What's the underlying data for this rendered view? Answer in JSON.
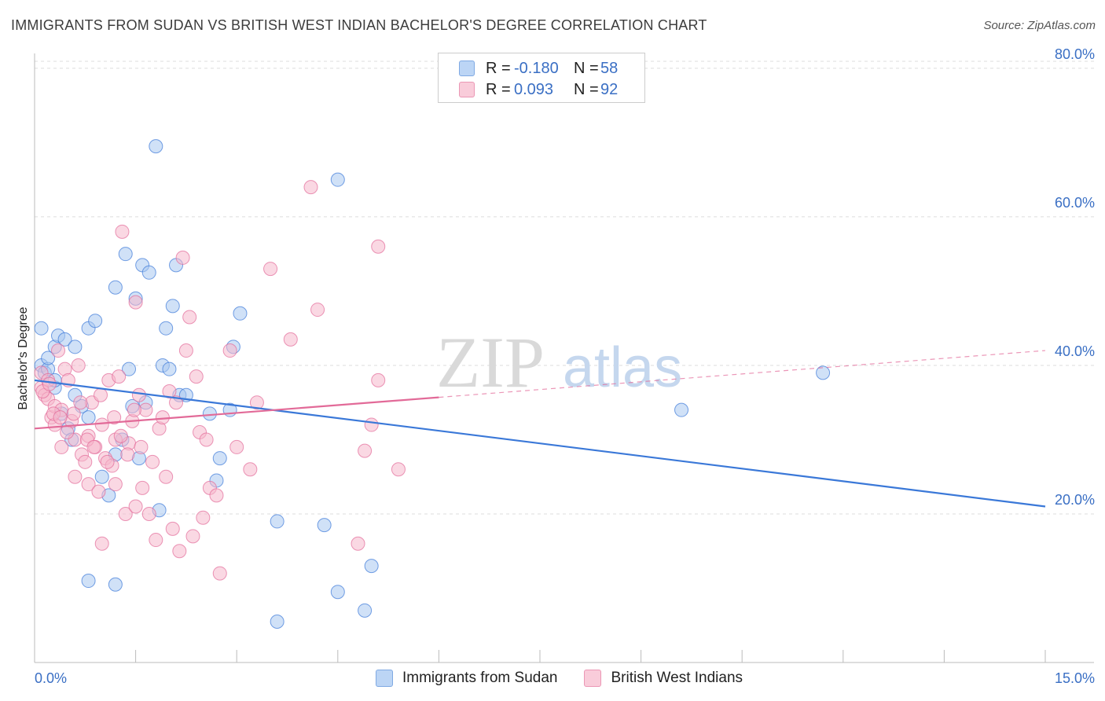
{
  "header": {
    "title": "IMMIGRANTS FROM SUDAN VS BRITISH WEST INDIAN BACHELOR'S DEGREE CORRELATION CHART",
    "source": "Source: ZipAtlas.com"
  },
  "watermark": {
    "zip": "ZIP",
    "atlas": "atlas"
  },
  "legend": {
    "rows": [
      {
        "r_label": "R =",
        "r_value": "-0.180",
        "n_label": "N =",
        "n_value": "58",
        "color": "#a9c8f0"
      },
      {
        "r_label": "R =",
        "r_value": "0.093",
        "n_label": "N =",
        "n_value": "92",
        "color": "#f6b8cc"
      }
    ]
  },
  "bottom_legend": {
    "items": [
      {
        "label": "Immigrants from Sudan",
        "color": "#a9c8f0"
      },
      {
        "label": "British West Indians",
        "color": "#f6b8cc"
      }
    ]
  },
  "chart_data": {
    "type": "scatter",
    "ylabel": "Bachelor's Degree",
    "xlim": [
      0,
      15
    ],
    "ylim": [
      0,
      82
    ],
    "x_tick_labels": [
      "0.0%",
      "15.0%"
    ],
    "y_ticks": [
      20,
      40,
      60,
      80
    ],
    "y_tick_labels": [
      "20.0%",
      "40.0%",
      "60.0%",
      "80.0%"
    ],
    "grid": true,
    "colors": {
      "sudan": "#3a78d8",
      "sudan_fill": "#a9c8f0",
      "bwi": "#e26a98",
      "bwi_fill": "#f6b8cc"
    },
    "series": [
      {
        "name": "Immigrants from Sudan",
        "trend": {
          "x": [
            0,
            15
          ],
          "y": [
            38.0,
            21.0
          ],
          "solid_to": 15
        },
        "points": [
          [
            0.1,
            40.0
          ],
          [
            0.1,
            45.0
          ],
          [
            0.15,
            39.0
          ],
          [
            0.2,
            39.5
          ],
          [
            0.2,
            41.0
          ],
          [
            0.3,
            37.0
          ],
          [
            0.3,
            42.5
          ],
          [
            0.35,
            44.0
          ],
          [
            0.4,
            33.5
          ],
          [
            0.45,
            43.5
          ],
          [
            0.5,
            31.5
          ],
          [
            0.55,
            30.0
          ],
          [
            0.6,
            42.5
          ],
          [
            0.7,
            34.5
          ],
          [
            0.8,
            45.0
          ],
          [
            0.8,
            33.0
          ],
          [
            0.9,
            46.0
          ],
          [
            1.0,
            25.0
          ],
          [
            1.1,
            22.5
          ],
          [
            1.2,
            50.5
          ],
          [
            1.2,
            28.0
          ],
          [
            1.3,
            30.0
          ],
          [
            1.35,
            55.0
          ],
          [
            1.4,
            39.5
          ],
          [
            1.45,
            34.5
          ],
          [
            1.5,
            49.0
          ],
          [
            1.55,
            27.5
          ],
          [
            1.6,
            53.5
          ],
          [
            1.65,
            35.0
          ],
          [
            1.7,
            52.5
          ],
          [
            1.8,
            69.5
          ],
          [
            1.85,
            20.5
          ],
          [
            1.9,
            40.0
          ],
          [
            1.95,
            45.0
          ],
          [
            2.0,
            39.5
          ],
          [
            2.05,
            48.0
          ],
          [
            2.1,
            53.5
          ],
          [
            2.15,
            36.0
          ],
          [
            2.25,
            36.0
          ],
          [
            2.6,
            33.5
          ],
          [
            2.7,
            24.5
          ],
          [
            2.75,
            27.5
          ],
          [
            2.9,
            34.0
          ],
          [
            2.95,
            42.5
          ],
          [
            3.05,
            47.0
          ],
          [
            3.6,
            19.0
          ],
          [
            3.6,
            5.5
          ],
          [
            4.3,
            18.5
          ],
          [
            4.5,
            9.5
          ],
          [
            4.5,
            65.0
          ],
          [
            4.9,
            7.0
          ],
          [
            5.0,
            13.0
          ],
          [
            9.6,
            34.0
          ],
          [
            11.7,
            39.0
          ],
          [
            0.8,
            11.0
          ],
          [
            1.2,
            10.5
          ],
          [
            0.3,
            38.0
          ],
          [
            0.6,
            36.0
          ]
        ]
      },
      {
        "name": "British West Indians",
        "trend": {
          "x": [
            0,
            15
          ],
          "y": [
            31.5,
            42.0
          ],
          "solid_to": 6.0
        },
        "points": [
          [
            0.1,
            37.0
          ],
          [
            0.1,
            39.0
          ],
          [
            0.15,
            36.0
          ],
          [
            0.2,
            38.0
          ],
          [
            0.2,
            35.5
          ],
          [
            0.25,
            33.0
          ],
          [
            0.3,
            34.5
          ],
          [
            0.3,
            32.0
          ],
          [
            0.35,
            42.0
          ],
          [
            0.4,
            29.0
          ],
          [
            0.4,
            34.0
          ],
          [
            0.45,
            39.5
          ],
          [
            0.5,
            38.0
          ],
          [
            0.55,
            32.5
          ],
          [
            0.6,
            30.0
          ],
          [
            0.6,
            25.0
          ],
          [
            0.65,
            40.0
          ],
          [
            0.7,
            28.0
          ],
          [
            0.75,
            27.0
          ],
          [
            0.8,
            24.0
          ],
          [
            0.8,
            30.5
          ],
          [
            0.85,
            35.0
          ],
          [
            0.9,
            29.0
          ],
          [
            0.95,
            23.0
          ],
          [
            1.0,
            32.0
          ],
          [
            1.0,
            16.0
          ],
          [
            1.05,
            27.5
          ],
          [
            1.1,
            38.0
          ],
          [
            1.15,
            26.5
          ],
          [
            1.2,
            30.0
          ],
          [
            1.2,
            24.0
          ],
          [
            1.25,
            38.5
          ],
          [
            1.3,
            58.0
          ],
          [
            1.35,
            20.0
          ],
          [
            1.4,
            29.5
          ],
          [
            1.45,
            32.5
          ],
          [
            1.5,
            21.0
          ],
          [
            1.5,
            48.5
          ],
          [
            1.55,
            36.0
          ],
          [
            1.6,
            23.5
          ],
          [
            1.65,
            34.0
          ],
          [
            1.7,
            20.0
          ],
          [
            1.75,
            27.0
          ],
          [
            1.8,
            16.5
          ],
          [
            1.85,
            31.5
          ],
          [
            1.9,
            33.0
          ],
          [
            1.95,
            25.0
          ],
          [
            2.0,
            36.5
          ],
          [
            2.05,
            18.0
          ],
          [
            2.1,
            35.0
          ],
          [
            2.15,
            15.0
          ],
          [
            2.2,
            54.5
          ],
          [
            2.25,
            42.0
          ],
          [
            2.3,
            46.5
          ],
          [
            2.35,
            17.0
          ],
          [
            2.4,
            38.5
          ],
          [
            2.45,
            31.0
          ],
          [
            2.5,
            19.5
          ],
          [
            2.55,
            30.0
          ],
          [
            2.6,
            23.5
          ],
          [
            2.7,
            22.5
          ],
          [
            2.75,
            12.0
          ],
          [
            2.9,
            42.0
          ],
          [
            3.0,
            29.0
          ],
          [
            3.2,
            26.0
          ],
          [
            3.3,
            35.0
          ],
          [
            3.5,
            53.0
          ],
          [
            3.8,
            43.5
          ],
          [
            4.1,
            64.0
          ],
          [
            4.2,
            47.5
          ],
          [
            4.8,
            16.0
          ],
          [
            4.9,
            28.5
          ],
          [
            5.0,
            32.0
          ],
          [
            5.1,
            38.0
          ],
          [
            5.1,
            56.0
          ],
          [
            5.4,
            26.0
          ],
          [
            0.12,
            36.5
          ],
          [
            0.22,
            37.5
          ],
          [
            0.28,
            33.5
          ],
          [
            0.38,
            33.0
          ],
          [
            0.48,
            31.0
          ],
          [
            0.58,
            33.5
          ],
          [
            0.68,
            35.0
          ],
          [
            0.78,
            30.0
          ],
          [
            0.88,
            29.0
          ],
          [
            0.98,
            36.0
          ],
          [
            1.08,
            27.0
          ],
          [
            1.18,
            33.0
          ],
          [
            1.28,
            30.5
          ],
          [
            1.38,
            28.0
          ],
          [
            1.48,
            34.0
          ],
          [
            1.58,
            29.0
          ]
        ]
      }
    ]
  }
}
